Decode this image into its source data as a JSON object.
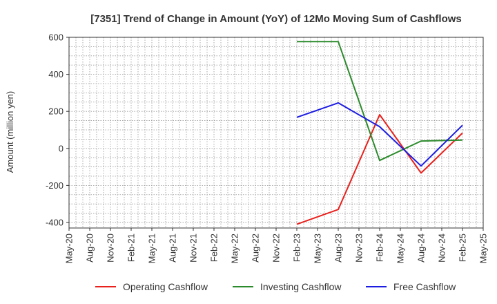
{
  "chart_data": {
    "type": "line",
    "title": "[7351]  Trend of Change in Amount (YoY) of 12Mo Moving Sum of Cashflows",
    "xlabel": "",
    "ylabel": "Amount (million yen)",
    "ylim": [
      -430,
      600
    ],
    "yticks": [
      600,
      400,
      200,
      0,
      -200,
      -400
    ],
    "categories": [
      "May-20",
      "Aug-20",
      "Nov-20",
      "Feb-21",
      "May-21",
      "Aug-21",
      "Nov-21",
      "Feb-22",
      "May-22",
      "Aug-22",
      "Nov-22",
      "Feb-23",
      "May-23",
      "Aug-23",
      "Nov-23",
      "Feb-24",
      "May-24",
      "Aug-24",
      "Nov-24",
      "Feb-25",
      "May-25"
    ],
    "grid": true,
    "legend_position": "bottom",
    "series": [
      {
        "name": "Operating Cashflow",
        "color": "#e8211d",
        "x": [
          "Feb-23",
          "Aug-23",
          "Feb-24",
          "Aug-24",
          "Feb-25"
        ],
        "values": [
          -410,
          -330,
          182,
          -133,
          83
        ]
      },
      {
        "name": "Investing Cashflow",
        "color": "#2b8a2b",
        "x": [
          "Feb-23",
          "Aug-23",
          "Feb-24",
          "Aug-24",
          "Feb-25"
        ],
        "values": [
          577,
          577,
          -65,
          40,
          45
        ]
      },
      {
        "name": "Free Cashflow",
        "color": "#1c1ce0",
        "x": [
          "Feb-23",
          "Aug-23",
          "Feb-24",
          "Aug-24",
          "Feb-25"
        ],
        "values": [
          168,
          246,
          117,
          -95,
          125
        ]
      }
    ]
  }
}
